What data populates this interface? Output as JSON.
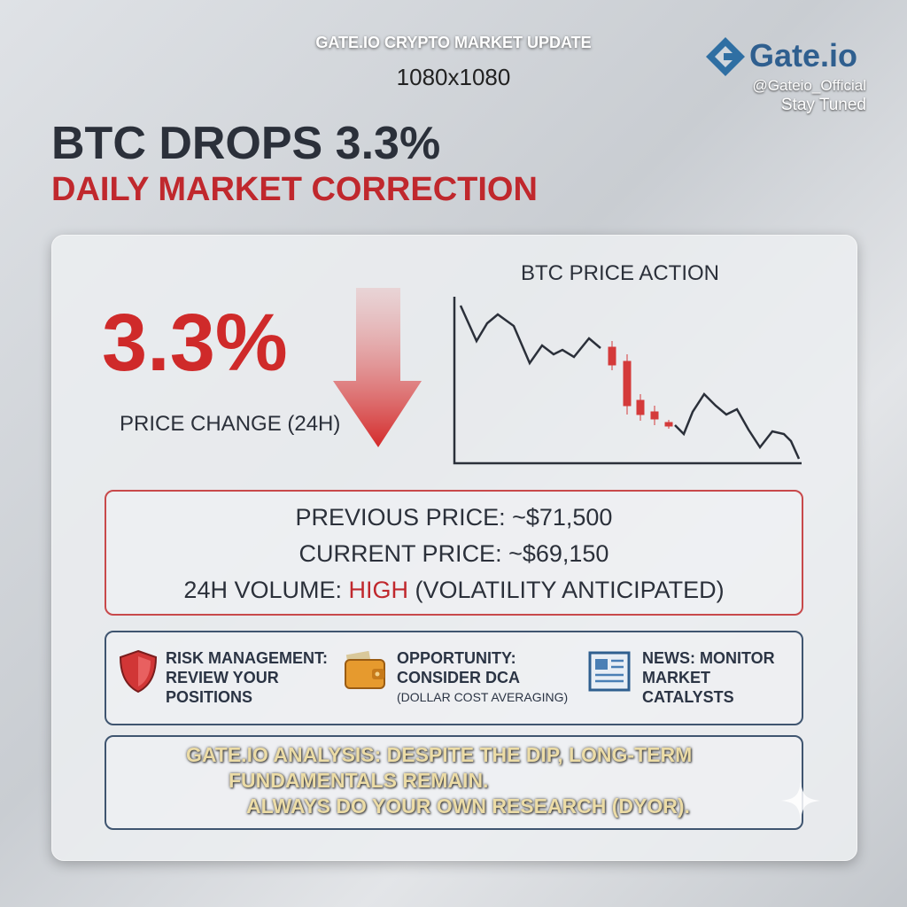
{
  "header": {
    "top_title": "GATE.IO CRYPTO MARKET UPDATE",
    "size_label": "1080x1080",
    "brand": "Gate.io",
    "handle": "@Gateio_Official",
    "tagline": "Stay Tuned"
  },
  "headline": {
    "title": "BTC DROPS 3.3%",
    "subtitle": "DAILY MARKET CORRECTION"
  },
  "stat": {
    "value": "3.3%",
    "label": "PRICE CHANGE (24H)"
  },
  "price_action": {
    "title": "BTC PRICE ACTION"
  },
  "prices": {
    "previous": "PREVIOUS PRICE: ~$71,500",
    "current": "CURRENT PRICE: ~$69,150",
    "volume_label": "24H VOLUME:",
    "volume_level": "HIGH",
    "volume_note": "(VOLATILITY ANTICIPATED)"
  },
  "tips": [
    {
      "lines": [
        "RISK MANAGEMENT:",
        "REVIEW YOUR",
        "POSITIONS"
      ]
    },
    {
      "lines": [
        "OPPORTUNITY:",
        "CONSIDER DCA",
        "(DOLLAR COST AVERAGING)"
      ]
    },
    {
      "lines": [
        "NEWS: MONITOR",
        "MARKET",
        "CATALYSTS"
      ]
    }
  ],
  "analysis": {
    "lines": [
      "GATE.IO ANALYSIS: DESPITE THE DIP, LONG-TERM",
      "FUNDAMENTALS REMAIN.",
      "ALWAYS DO YOUR OWN RESEARCH (DYOR)."
    ]
  }
}
